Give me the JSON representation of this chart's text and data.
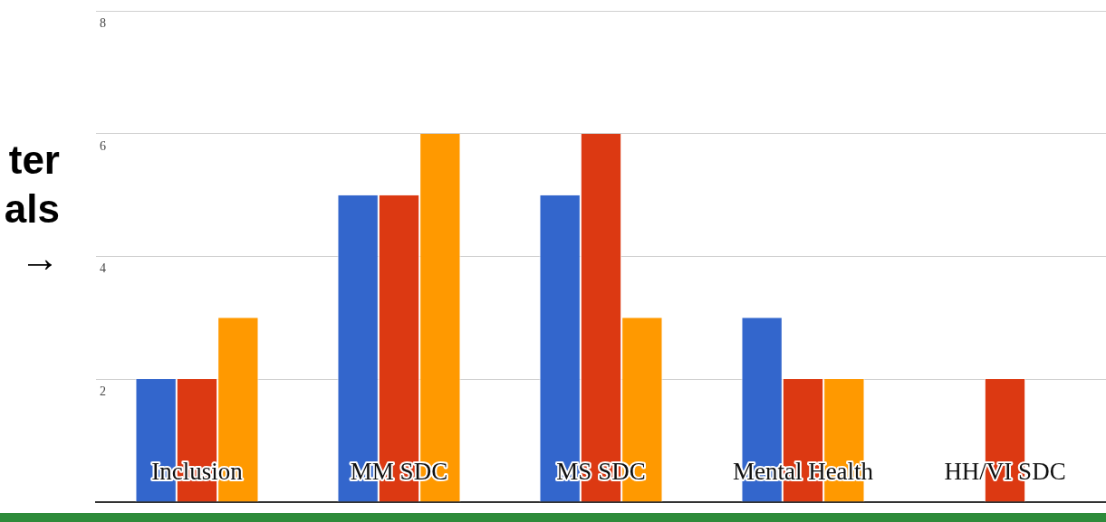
{
  "chart_data": {
    "type": "bar",
    "categories": [
      "Inclusion",
      "MM SDC",
      "MS SDC",
      "Mental Health",
      "HH/VI SDC"
    ],
    "series": [
      {
        "color": "#3366cc",
        "values": [
          2,
          5,
          5,
          3,
          null
        ]
      },
      {
        "color": "#dc3912",
        "values": [
          2,
          5,
          6,
          2,
          2
        ]
      },
      {
        "color": "#ff9900",
        "values": [
          3,
          6,
          3,
          2,
          null
        ]
      }
    ],
    "ylim": [
      0,
      8
    ],
    "yticks": [
      2,
      4,
      6,
      8
    ],
    "grid": "y",
    "legend": false,
    "annotations": [
      "ter",
      "als",
      "→"
    ]
  }
}
